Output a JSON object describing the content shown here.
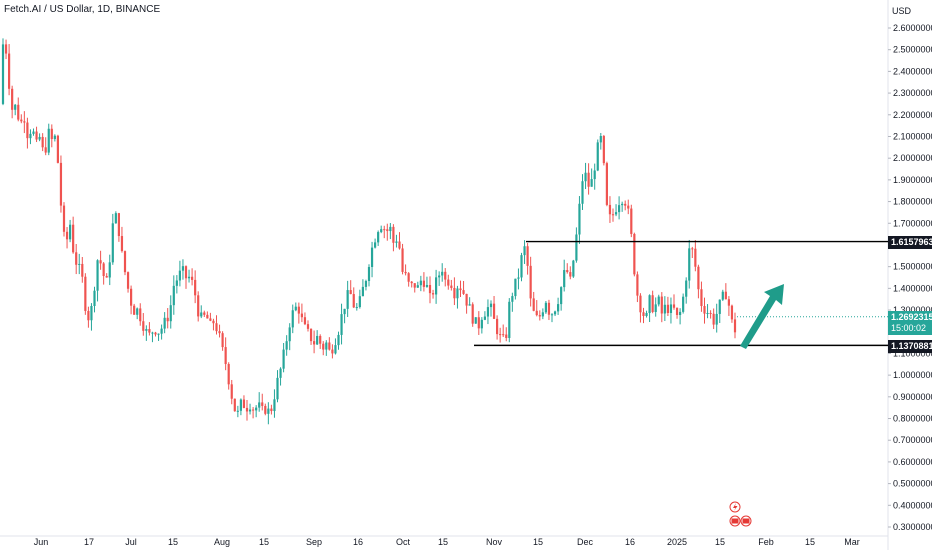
{
  "header": {
    "symbol_title": "Fetch.AI / US Dollar, 1D, BINANCE",
    "currency": "USD"
  },
  "price_tags": {
    "resistance": "1.61579636",
    "current_price": "1.26923151",
    "countdown": "15:00:02",
    "support": "1.13708815"
  },
  "colors": {
    "up": "#26a69a",
    "down": "#ef5350",
    "level_line": "#000000",
    "arrow": "#1f9c8a",
    "event_icon": "#e53935"
  },
  "chart_data": {
    "type": "candlestick",
    "symbol": "Fetch.AI / US Dollar",
    "interval": "1D",
    "exchange": "BINANCE",
    "ylim": [
      0.26,
      2.7
    ],
    "y_ticks": [
      "2.60000000",
      "2.50000000",
      "2.40000000",
      "2.30000000",
      "2.20000000",
      "2.10000000",
      "2.00000000",
      "1.90000000",
      "1.80000000",
      "1.70000000",
      "1.60000000",
      "1.50000000",
      "1.40000000",
      "1.30000000",
      "1.20000000",
      "1.10000000",
      "1.00000000",
      "0.90000000",
      "0.80000000",
      "0.70000000",
      "0.60000000",
      "0.50000000",
      "0.40000000",
      "0.30000000"
    ],
    "x_ticks": [
      "Jun",
      "17",
      "Jul",
      "15",
      "Aug",
      "15",
      "Sep",
      "16",
      "Oct",
      "15",
      "Nov",
      "15",
      "Dec",
      "16",
      "2025",
      "15",
      "Feb",
      "15",
      "Mar"
    ],
    "close_path": [
      [
        0,
        2.25
      ],
      [
        2,
        2.45
      ],
      [
        4,
        2.6
      ],
      [
        7,
        2.45
      ],
      [
        10,
        2.3
      ],
      [
        13,
        2.2
      ],
      [
        16,
        2.25
      ],
      [
        20,
        2.15
      ],
      [
        24,
        2.2
      ],
      [
        28,
        2.1
      ],
      [
        32,
        2.15
      ],
      [
        36,
        2.05
      ],
      [
        40,
        2.1
      ],
      [
        44,
        2.0
      ],
      [
        48,
        2.12
      ],
      [
        52,
        2.08
      ],
      [
        56,
        2.1
      ],
      [
        60,
        1.85
      ],
      [
        63,
        1.65
      ],
      [
        66,
        1.6
      ],
      [
        70,
        1.7
      ],
      [
        74,
        1.55
      ],
      [
        78,
        1.5
      ],
      [
        82,
        1.45
      ],
      [
        86,
        1.3
      ],
      [
        90,
        1.25
      ],
      [
        94,
        1.4
      ],
      [
        98,
        1.55
      ],
      [
        102,
        1.5
      ],
      [
        106,
        1.4
      ],
      [
        110,
        1.55
      ],
      [
        114,
        1.75
      ],
      [
        118,
        1.7
      ],
      [
        122,
        1.55
      ],
      [
        126,
        1.45
      ],
      [
        130,
        1.35
      ],
      [
        134,
        1.3
      ],
      [
        138,
        1.3
      ],
      [
        142,
        1.25
      ],
      [
        146,
        1.2
      ],
      [
        150,
        1.18
      ],
      [
        154,
        1.22
      ],
      [
        158,
        1.2
      ],
      [
        162,
        1.22
      ],
      [
        166,
        1.25
      ],
      [
        170,
        1.3
      ],
      [
        174,
        1.42
      ],
      [
        178,
        1.45
      ],
      [
        182,
        1.48
      ],
      [
        186,
        1.45
      ],
      [
        190,
        1.45
      ],
      [
        194,
        1.4
      ],
      [
        198,
        1.3
      ],
      [
        202,
        1.25
      ],
      [
        206,
        1.28
      ],
      [
        210,
        1.22
      ],
      [
        214,
        1.25
      ],
      [
        218,
        1.2
      ],
      [
        222,
        1.12
      ],
      [
        226,
        1.05
      ],
      [
        230,
        0.95
      ],
      [
        234,
        0.85
      ],
      [
        238,
        0.82
      ],
      [
        242,
        0.88
      ],
      [
        246,
        0.85
      ],
      [
        250,
        0.87
      ],
      [
        254,
        0.84
      ],
      [
        258,
        0.86
      ],
      [
        262,
        0.83
      ],
      [
        266,
        0.85
      ],
      [
        270,
        0.82
      ],
      [
        274,
        0.9
      ],
      [
        278,
        0.98
      ],
      [
        282,
        1.05
      ],
      [
        286,
        1.15
      ],
      [
        290,
        1.25
      ],
      [
        294,
        1.3
      ],
      [
        298,
        1.32
      ],
      [
        302,
        1.25
      ],
      [
        306,
        1.2
      ],
      [
        310,
        1.18
      ],
      [
        314,
        1.15
      ],
      [
        318,
        1.18
      ],
      [
        322,
        1.12
      ],
      [
        326,
        1.15
      ],
      [
        330,
        1.1
      ],
      [
        334,
        1.15
      ],
      [
        338,
        1.2
      ],
      [
        342,
        1.28
      ],
      [
        346,
        1.35
      ],
      [
        350,
        1.38
      ],
      [
        354,
        1.32
      ],
      [
        358,
        1.3
      ],
      [
        362,
        1.38
      ],
      [
        366,
        1.45
      ],
      [
        370,
        1.55
      ],
      [
        374,
        1.62
      ],
      [
        378,
        1.68
      ],
      [
        382,
        1.7
      ],
      [
        386,
        1.66
      ],
      [
        390,
        1.68
      ],
      [
        394,
        1.6
      ],
      [
        398,
        1.65
      ],
      [
        402,
        1.48
      ],
      [
        406,
        1.45
      ],
      [
        410,
        1.4
      ],
      [
        414,
        1.42
      ],
      [
        418,
        1.4
      ],
      [
        422,
        1.45
      ],
      [
        426,
        1.42
      ],
      [
        430,
        1.35
      ],
      [
        434,
        1.4
      ],
      [
        438,
        1.45
      ],
      [
        442,
        1.5
      ],
      [
        446,
        1.42
      ],
      [
        450,
        1.45
      ],
      [
        454,
        1.38
      ],
      [
        458,
        1.42
      ],
      [
        462,
        1.4
      ],
      [
        466,
        1.35
      ],
      [
        470,
        1.3
      ],
      [
        474,
        1.25
      ],
      [
        478,
        1.22
      ],
      [
        482,
        1.28
      ],
      [
        486,
        1.3
      ],
      [
        490,
        1.32
      ],
      [
        494,
        1.25
      ],
      [
        498,
        1.2
      ],
      [
        502,
        1.15
      ],
      [
        506,
        1.18
      ],
      [
        510,
        1.35
      ],
      [
        514,
        1.4
      ],
      [
        518,
        1.45
      ],
      [
        522,
        1.55
      ],
      [
        526,
        1.6
      ],
      [
        530,
        1.35
      ],
      [
        534,
        1.28
      ],
      [
        538,
        1.25
      ],
      [
        542,
        1.3
      ],
      [
        546,
        1.35
      ],
      [
        550,
        1.28
      ],
      [
        554,
        1.3
      ],
      [
        558,
        1.35
      ],
      [
        562,
        1.42
      ],
      [
        566,
        1.5
      ],
      [
        570,
        1.42
      ],
      [
        574,
        1.55
      ],
      [
        578,
        1.7
      ],
      [
        582,
        1.9
      ],
      [
        586,
        1.92
      ],
      [
        590,
        1.85
      ],
      [
        594,
        1.95
      ],
      [
        598,
        2.05
      ],
      [
        602,
        2.1
      ],
      [
        606,
        1.78
      ],
      [
        610,
        1.72
      ],
      [
        614,
        1.75
      ],
      [
        618,
        1.8
      ],
      [
        622,
        1.82
      ],
      [
        626,
        1.8
      ],
      [
        630,
        1.7
      ],
      [
        634,
        1.5
      ],
      [
        638,
        1.35
      ],
      [
        642,
        1.3
      ],
      [
        646,
        1.25
      ],
      [
        650,
        1.35
      ],
      [
        654,
        1.3
      ],
      [
        658,
        1.35
      ],
      [
        662,
        1.28
      ],
      [
        666,
        1.32
      ],
      [
        670,
        1.3
      ],
      [
        674,
        1.3
      ],
      [
        678,
        1.25
      ],
      [
        682,
        1.32
      ],
      [
        686,
        1.45
      ],
      [
        690,
        1.6
      ],
      [
        694,
        1.55
      ],
      [
        698,
        1.4
      ],
      [
        702,
        1.32
      ],
      [
        706,
        1.3
      ],
      [
        710,
        1.28
      ],
      [
        714,
        1.25
      ],
      [
        718,
        1.3
      ],
      [
        722,
        1.35
      ],
      [
        726,
        1.38
      ],
      [
        730,
        1.3
      ],
      [
        734,
        1.18
      ],
      [
        737,
        1.27
      ]
    ],
    "horizontal_levels": [
      {
        "label": "1.61579636",
        "price": 1.6158,
        "from_x": 526,
        "to_x": 888
      },
      {
        "label": "1.13708815",
        "price": 1.1371,
        "from_x": 474,
        "to_x": 888
      }
    ],
    "grid": false,
    "legend": "none"
  }
}
